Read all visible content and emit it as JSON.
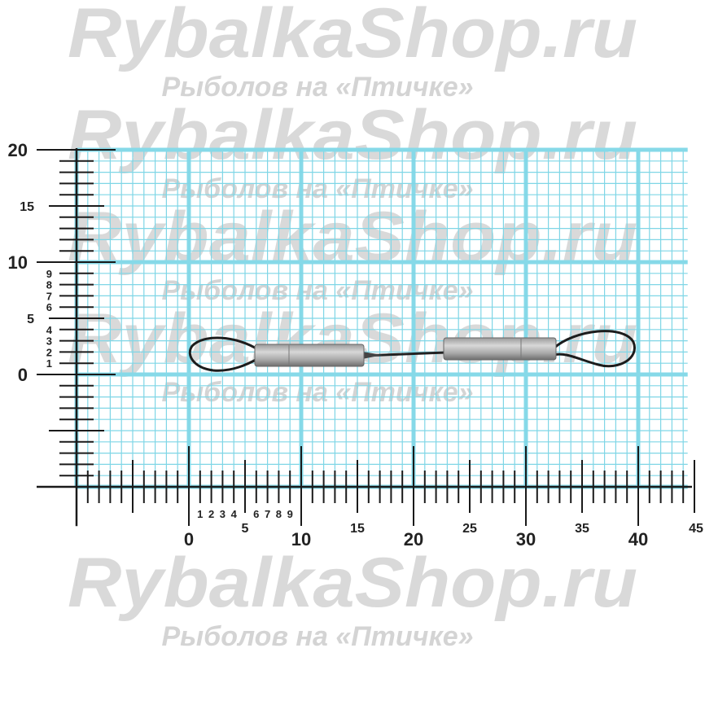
{
  "watermark": {
    "brand": "RybalkaShop.ru",
    "slogan": "Рыболов на «Птичке»"
  },
  "ruler": {
    "units": "mm",
    "x_range": [
      -10,
      45
    ],
    "y_range": [
      -10,
      20
    ],
    "x_major_labels": [
      "0",
      "10",
      "20",
      "30",
      "40"
    ],
    "x_mid_labels": [
      "5",
      "15",
      "25",
      "35",
      "45"
    ],
    "x_minor_labels": [
      "1",
      "2",
      "3",
      "4",
      "6",
      "7",
      "8",
      "9"
    ],
    "y_major_labels": [
      "20",
      "10",
      "0"
    ],
    "y_mid_labels": [
      "15",
      "5"
    ],
    "y_minor_labels": [
      "9",
      "8",
      "7",
      "6",
      "4",
      "3",
      "2",
      "1"
    ]
  },
  "colors": {
    "grid": "#7fd6e6",
    "grid_major": "#86d9e8",
    "ruler": "#1a1a1a",
    "watermark": "#d9d9d9"
  },
  "product": {
    "object": "swivel-with-two-loops",
    "length_mm": 40,
    "height_mm": 3
  }
}
